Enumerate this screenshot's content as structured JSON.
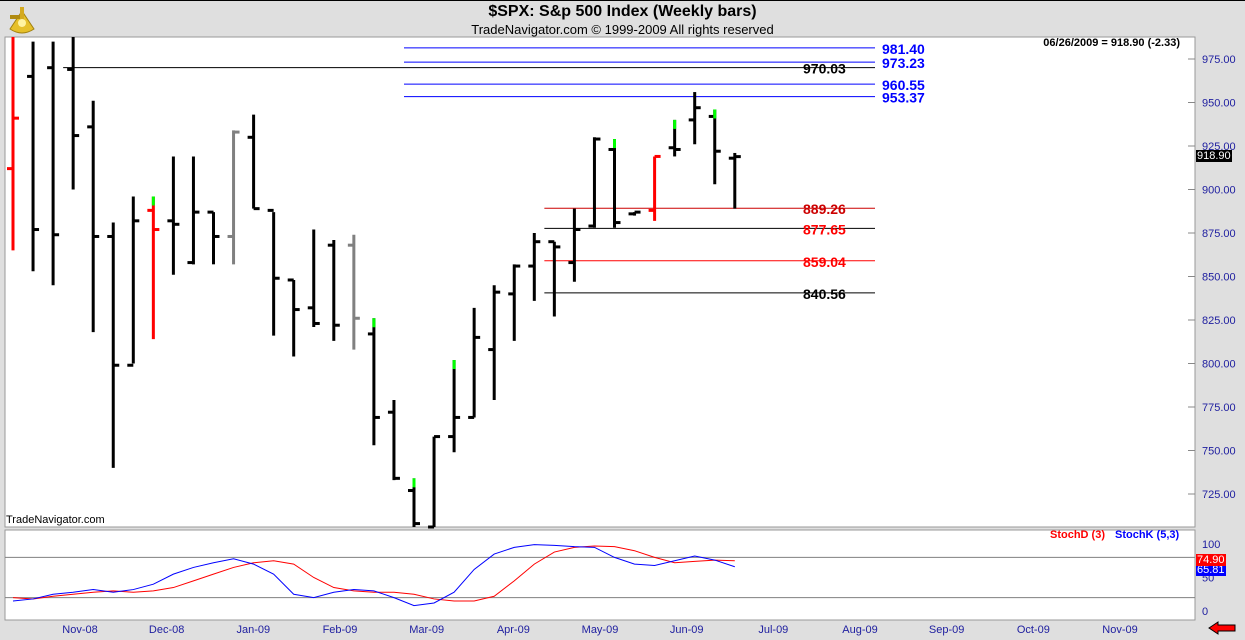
{
  "header": {
    "title": "$SPX:  S&p 500 Index  (Weekly bars)",
    "subtitle": "TradeNavigator.com © 1999-2009 All rights reserved",
    "readout": "06/26/2009 = 918.90 (-2.33)",
    "watermark": "TradeNavigator.com",
    "logo": "sextant-logo"
  },
  "chart_data": [
    {
      "type": "ohlc",
      "title": "$SPX:  S&p 500 Index  (Weekly bars)",
      "ylim": [
        705,
        990
      ],
      "yticks": [
        "975.00",
        "950.00",
        "925.00",
        "900.00",
        "875.00",
        "850.00",
        "825.00",
        "800.00",
        "775.00",
        "750.00",
        "725.00"
      ],
      "ytick_values": [
        975,
        950,
        925,
        900,
        875,
        850,
        825,
        800,
        775,
        750,
        725
      ],
      "xticks": [
        "Nov-08",
        "Dec-08",
        "Jan-09",
        "Feb-09",
        "Mar-09",
        "Apr-09",
        "May-09",
        "Jun-09",
        "Jul-09",
        "Aug-09",
        "Sep-09",
        "Oct-09",
        "Nov-09"
      ],
      "last_price": "918.90",
      "last_value": 918.9,
      "colors": {
        "up": "#000000",
        "gray": "#808080",
        "red": "#ff0000",
        "green": "#00ff00",
        "blue": "#0000ff"
      },
      "bars": [
        [
          990,
          865,
          912,
          941,
          "red"
        ],
        [
          985,
          853,
          965,
          877,
          "black"
        ],
        [
          985,
          845,
          970,
          874,
          "black"
        ],
        [
          988,
          900,
          969,
          931,
          "black"
        ],
        [
          951,
          818,
          936,
          873,
          "black"
        ],
        [
          881,
          740,
          873,
          799,
          "black"
        ],
        [
          896,
          800,
          799,
          882,
          "black"
        ],
        [
          896,
          814,
          888,
          877,
          "red"
        ],
        [
          919,
          851,
          882,
          880,
          "black"
        ],
        [
          919,
          857,
          858,
          887,
          "black"
        ],
        [
          887,
          857,
          887,
          873,
          "black"
        ],
        [
          934,
          857,
          873,
          933,
          "gray"
        ],
        [
          943,
          889,
          930,
          889,
          "black"
        ],
        [
          887,
          816,
          888,
          849,
          "black"
        ],
        [
          848,
          804,
          848,
          831,
          "black"
        ],
        [
          877,
          821,
          832,
          823,
          "black"
        ],
        [
          871,
          813,
          868,
          822,
          "black"
        ],
        [
          874,
          808,
          868,
          826,
          "gray"
        ],
        [
          826,
          753,
          817,
          769,
          "black"
        ],
        [
          779,
          733,
          772,
          734,
          "black"
        ],
        [
          734,
          705,
          727,
          708,
          "black"
        ],
        [
          758,
          705,
          706,
          758,
          "black"
        ],
        [
          802,
          749,
          758,
          769,
          "black"
        ],
        [
          832,
          769,
          769,
          815,
          "black"
        ],
        [
          845,
          779,
          808,
          841,
          "black"
        ],
        [
          857,
          813,
          840,
          856,
          "black"
        ],
        [
          875,
          836,
          856,
          870,
          "black"
        ],
        [
          870,
          827,
          870,
          867,
          "black"
        ],
        [
          889,
          847,
          858,
          877,
          "black"
        ],
        [
          930,
          878,
          879,
          929,
          "black"
        ],
        [
          929,
          878,
          923,
          881,
          "black"
        ],
        [
          887,
          885,
          886,
          887,
          "black"
        ],
        [
          919,
          882,
          888,
          919,
          "red"
        ],
        [
          940,
          919,
          924,
          923,
          "black"
        ],
        [
          956,
          926,
          940,
          947,
          "black"
        ],
        [
          946,
          903,
          942,
          922,
          "black"
        ],
        [
          921,
          889,
          918,
          918.9,
          "black"
        ]
      ],
      "green_tops": [
        7,
        18,
        20,
        22,
        30,
        33,
        35
      ],
      "levels": [
        {
          "label": "981.40",
          "value": 981.4,
          "color": "#0000ff",
          "start": 20
        },
        {
          "label": "973.23",
          "value": 973.23,
          "color": "#0000ff",
          "start": 20
        },
        {
          "label": "970.03",
          "value": 970.03,
          "color": "#000000",
          "start": 3
        },
        {
          "label": "960.55",
          "value": 960.55,
          "color": "#0000ff",
          "start": 20
        },
        {
          "label": "953.37",
          "value": 953.37,
          "color": "#0000ff",
          "start": 20
        },
        {
          "label": "889.26",
          "value": 889.26,
          "color": "#cc0000",
          "start": 27
        },
        {
          "label": "877.65",
          "value": 877.65,
          "color": "#000000",
          "start": 27,
          "text_color": "#ff0000"
        },
        {
          "label": "859.04",
          "value": 859.04,
          "color": "#ff0000",
          "start": 27
        },
        {
          "label": "840.56",
          "value": 840.56,
          "color": "#000000",
          "start": 27
        }
      ]
    },
    {
      "type": "line",
      "ylim": [
        -10,
        110
      ],
      "yticks": [
        "100",
        "50",
        "0"
      ],
      "ytick_values": [
        100,
        50,
        0
      ],
      "hlines": [
        80,
        20
      ],
      "series": [
        {
          "name": "StochD (3)",
          "color": "#ff0000",
          "last": "74.90",
          "values": [
            20,
            18,
            22,
            25,
            28,
            30,
            28,
            30,
            35,
            45,
            55,
            65,
            72,
            75,
            70,
            50,
            35,
            30,
            28,
            28,
            25,
            18,
            15,
            15,
            22,
            45,
            70,
            88,
            95,
            97,
            96,
            90,
            80,
            72,
            74,
            76,
            75
          ]
        },
        {
          "name": "StochK (5,3)",
          "color": "#0000ff",
          "last": "65.81",
          "values": [
            15,
            18,
            25,
            28,
            32,
            28,
            32,
            40,
            55,
            65,
            72,
            78,
            70,
            55,
            25,
            20,
            28,
            32,
            30,
            20,
            8,
            12,
            28,
            62,
            85,
            95,
            99,
            98,
            96,
            95,
            80,
            70,
            68,
            75,
            82,
            76,
            66
          ]
        }
      ]
    }
  ]
}
